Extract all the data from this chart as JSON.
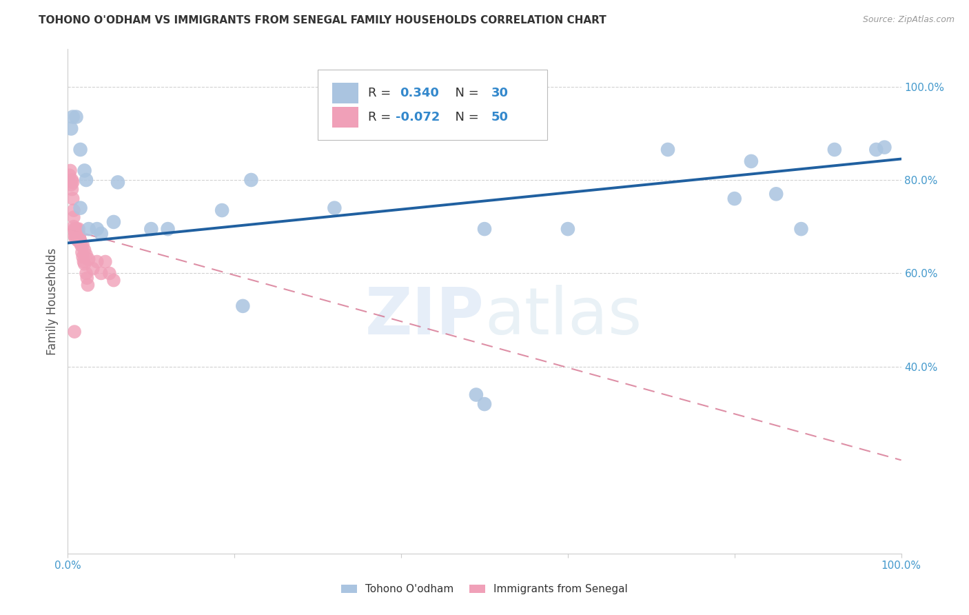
{
  "title": "TOHONO O'ODHAM VS IMMIGRANTS FROM SENEGAL FAMILY HOUSEHOLDS CORRELATION CHART",
  "source": "Source: ZipAtlas.com",
  "ylabel": "Family Households",
  "legend_label1": "Tohono O'odham",
  "legend_label2": "Immigrants from Senegal",
  "R1": 0.34,
  "N1": 30,
  "R2": -0.072,
  "N2": 50,
  "blue_color": "#aac4e0",
  "pink_color": "#f0a0b8",
  "blue_line_color": "#2060a0",
  "pink_line_color": "#d06080",
  "xlim": [
    0.0,
    1.0
  ],
  "ylim": [
    0.0,
    1.08
  ],
  "yticks": [
    0.4,
    0.6,
    0.8,
    1.0
  ],
  "ytick_labels": [
    "40.0%",
    "60.0%",
    "80.0%",
    "100.0%"
  ],
  "xticks": [
    0.0,
    0.2,
    0.4,
    0.6,
    0.8,
    1.0
  ],
  "xtick_labels": [
    "0.0%",
    "",
    "",
    "",
    "",
    "100.0%"
  ],
  "blue_scatter_x": [
    0.006,
    0.01,
    0.004,
    0.015,
    0.02,
    0.022,
    0.06,
    0.185,
    0.22,
    0.32,
    0.5,
    0.72,
    0.85,
    0.92,
    0.97,
    0.035,
    0.04,
    0.055,
    0.1,
    0.12,
    0.21,
    0.88,
    0.98,
    0.6,
    0.8,
    0.015,
    0.025,
    0.49,
    0.82,
    0.5
  ],
  "blue_scatter_y": [
    0.935,
    0.935,
    0.91,
    0.865,
    0.82,
    0.8,
    0.795,
    0.735,
    0.8,
    0.74,
    0.695,
    0.865,
    0.77,
    0.865,
    0.865,
    0.695,
    0.685,
    0.71,
    0.695,
    0.695,
    0.53,
    0.695,
    0.87,
    0.695,
    0.76,
    0.74,
    0.695,
    0.34,
    0.84,
    0.32
  ],
  "pink_scatter_x": [
    0.002,
    0.003,
    0.004,
    0.005,
    0.005,
    0.006,
    0.006,
    0.007,
    0.007,
    0.007,
    0.008,
    0.008,
    0.008,
    0.009,
    0.009,
    0.01,
    0.01,
    0.01,
    0.011,
    0.011,
    0.012,
    0.012,
    0.013,
    0.013,
    0.014,
    0.014,
    0.015,
    0.015,
    0.016,
    0.017,
    0.018,
    0.019,
    0.02,
    0.022,
    0.023,
    0.024,
    0.035,
    0.04,
    0.045,
    0.05,
    0.055,
    0.01,
    0.012,
    0.015,
    0.018,
    0.02,
    0.022,
    0.025,
    0.03,
    0.008
  ],
  "pink_scatter_y": [
    0.81,
    0.82,
    0.79,
    0.8,
    0.78,
    0.795,
    0.76,
    0.735,
    0.72,
    0.7,
    0.695,
    0.69,
    0.68,
    0.685,
    0.675,
    0.695,
    0.685,
    0.68,
    0.695,
    0.685,
    0.675,
    0.67,
    0.695,
    0.685,
    0.68,
    0.675,
    0.67,
    0.665,
    0.66,
    0.645,
    0.635,
    0.625,
    0.62,
    0.6,
    0.59,
    0.575,
    0.625,
    0.6,
    0.625,
    0.6,
    0.585,
    0.695,
    0.68,
    0.67,
    0.66,
    0.65,
    0.64,
    0.63,
    0.61,
    0.475
  ],
  "blue_trend_x": [
    0.0,
    1.0
  ],
  "blue_trend_y": [
    0.665,
    0.845
  ],
  "pink_trend_x": [
    0.0,
    1.0
  ],
  "pink_trend_y": [
    0.695,
    0.2
  ],
  "watermark_zip": "ZIP",
  "watermark_atlas": "atlas"
}
